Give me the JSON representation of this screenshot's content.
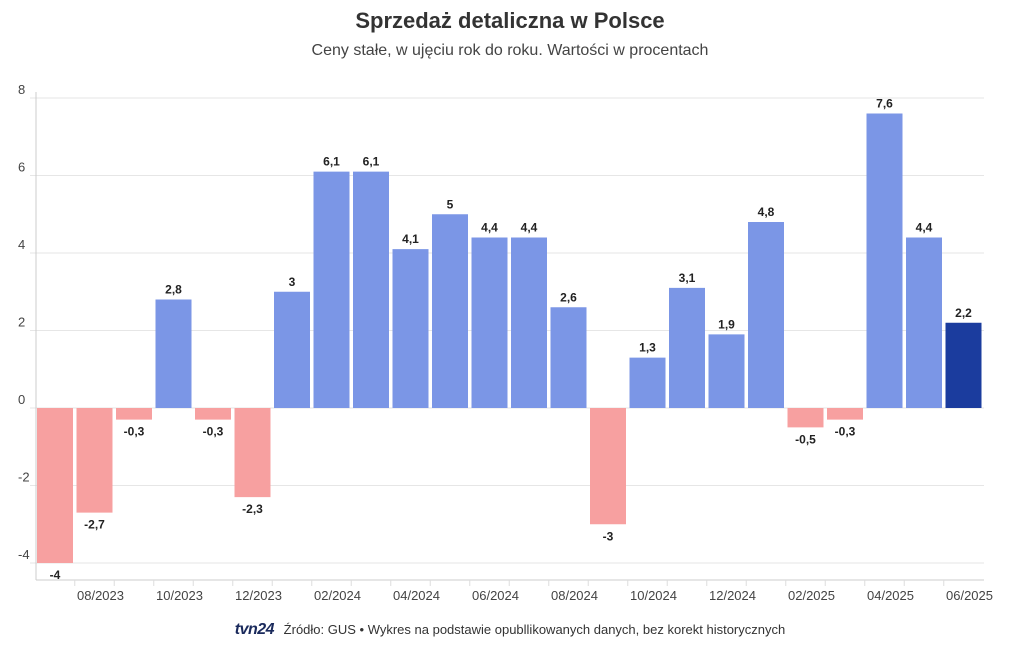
{
  "title": "Sprzedaż detaliczna w Polsce",
  "subtitle": "Ceny stałe, w ujęciu rok do roku. Wartości w procentach",
  "footer": {
    "logo": "tvn24",
    "source": "Źródło: GUS • Wykres na podstawie opubllikowanych danych, bez korekt historycznych"
  },
  "colors": {
    "positive": "#7b96e6",
    "negative": "#f7a0a0",
    "highlight": "#1b3c9e",
    "grid": "#e6e6e6"
  },
  "chart_data": {
    "type": "bar",
    "title": "Sprzedaż detaliczna w Polsce",
    "subtitle": "Ceny stałe, w ujęciu rok do roku. Wartości w procentach",
    "xlabel": "",
    "ylabel": "",
    "ylim": [
      -4.5,
      8.2
    ],
    "yticks": [
      -4,
      -2,
      0,
      2,
      4,
      6,
      8
    ],
    "grid": true,
    "categories": [
      "07/2023",
      "08/2023",
      "09/2023",
      "10/2023",
      "11/2023",
      "12/2023",
      "01/2024",
      "02/2024",
      "03/2024",
      "04/2024",
      "05/2024",
      "06/2024",
      "07/2024",
      "08/2024",
      "09/2024",
      "10/2024",
      "11/2024",
      "12/2024",
      "01/2025",
      "02/2025",
      "03/2025",
      "04/2025",
      "05/2025",
      "06/2025"
    ],
    "x_tick_labels": [
      "08/2023",
      "10/2023",
      "12/2023",
      "02/2024",
      "04/2024",
      "06/2024",
      "08/2024",
      "10/2024",
      "12/2024",
      "02/2025",
      "04/2025",
      "06/2025"
    ],
    "values": [
      -4,
      -2.7,
      -0.3,
      2.8,
      -0.3,
      -2.3,
      3,
      6.1,
      6.1,
      4.1,
      5,
      4.4,
      4.4,
      2.6,
      -3,
      1.3,
      3.1,
      1.9,
      4.8,
      -0.5,
      -0.3,
      7.6,
      4.4,
      2.2
    ],
    "labels": [
      "-4",
      "-2,7",
      "-0,3",
      "2,8",
      "-0,3",
      "-2,3",
      "3",
      "6,1",
      "6,1",
      "4,1",
      "5",
      "4,4",
      "4,4",
      "2,6",
      "-3",
      "1,3",
      "3,1",
      "1,9",
      "4,8",
      "-0,5",
      "-0,3",
      "7,6",
      "4,4",
      "2,2"
    ],
    "highlight_last": true
  }
}
